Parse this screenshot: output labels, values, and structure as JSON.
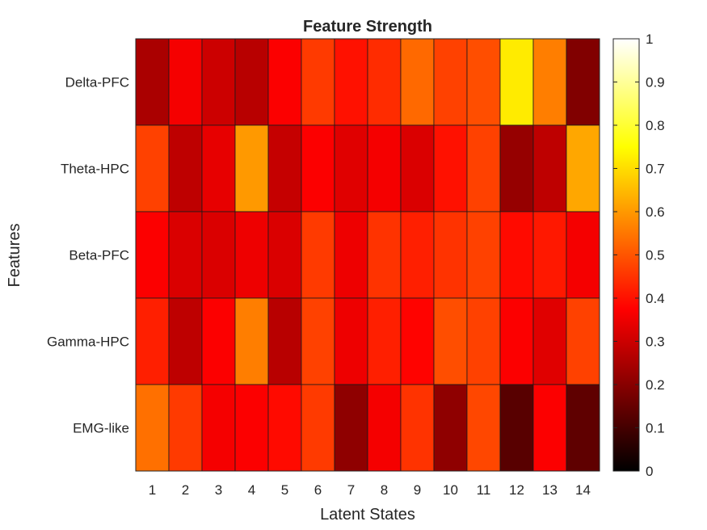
{
  "chart_data": {
    "type": "heatmap",
    "title": "Feature Strength",
    "xlabel": "Latent States",
    "ylabel": "Features",
    "x_categories": [
      "1",
      "2",
      "3",
      "4",
      "5",
      "6",
      "7",
      "8",
      "9",
      "10",
      "11",
      "12",
      "13",
      "14"
    ],
    "y_categories": [
      "Delta-PFC",
      "Theta-HPC",
      "Beta-PFC",
      "Gamma-HPC",
      "EMG-like"
    ],
    "values": [
      [
        0.25,
        0.36,
        0.3,
        0.27,
        0.37,
        0.46,
        0.4,
        0.44,
        0.53,
        0.47,
        0.49,
        0.72,
        0.56,
        0.19
      ],
      [
        0.47,
        0.28,
        0.34,
        0.6,
        0.29,
        0.37,
        0.33,
        0.36,
        0.32,
        0.4,
        0.47,
        0.22,
        0.28,
        0.62
      ],
      [
        0.37,
        0.32,
        0.32,
        0.35,
        0.32,
        0.46,
        0.35,
        0.45,
        0.42,
        0.45,
        0.47,
        0.39,
        0.41,
        0.36
      ],
      [
        0.42,
        0.28,
        0.37,
        0.56,
        0.27,
        0.47,
        0.35,
        0.42,
        0.38,
        0.49,
        0.47,
        0.37,
        0.33,
        0.47
      ],
      [
        0.54,
        0.46,
        0.36,
        0.37,
        0.39,
        0.46,
        0.21,
        0.36,
        0.45,
        0.21,
        0.48,
        0.13,
        0.37,
        0.14
      ]
    ],
    "colormap": "hot",
    "clim": [
      0,
      1
    ],
    "colorbar": {
      "ticks": [
        "0",
        "0.1",
        "0.2",
        "0.3",
        "0.4",
        "0.5",
        "0.6",
        "0.7",
        "0.8",
        "0.9",
        "1"
      ]
    },
    "grid": false
  }
}
